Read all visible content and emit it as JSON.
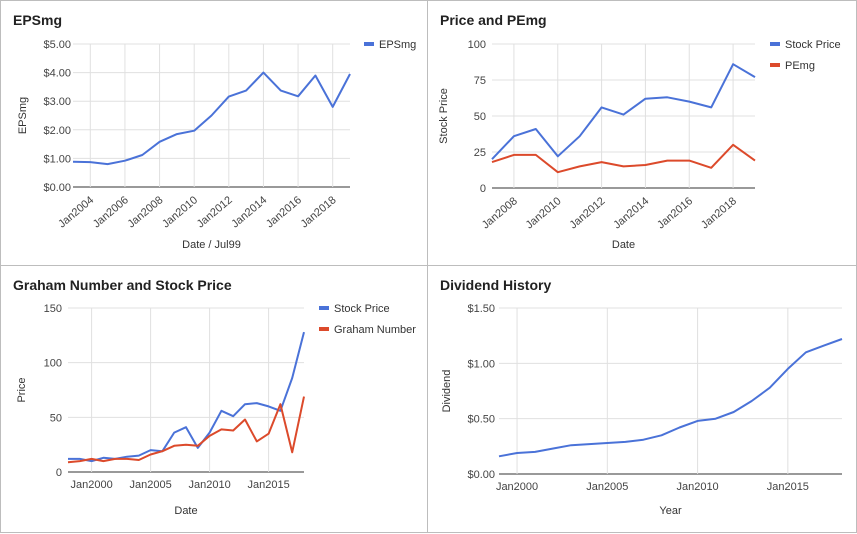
{
  "chart_data": [
    {
      "type": "line",
      "title": "EPSmg",
      "xlabel": "Date / Jul99",
      "ylabel": "EPSmg",
      "ylim": [
        0,
        5
      ],
      "yticks": [
        "$0.00",
        "$1.00",
        "$2.00",
        "$3.00",
        "$4.00",
        "$5.00"
      ],
      "xticks": [
        "Jan2004",
        "Jan2006",
        "Jan2008",
        "Jan2010",
        "Jan2012",
        "Jan2014",
        "Jan2016",
        "Jan2018"
      ],
      "x": [
        2003,
        2004,
        2005,
        2006,
        2007,
        2008,
        2009,
        2010,
        2011,
        2012,
        2013,
        2014,
        2015,
        2016,
        2017,
        2018,
        2019
      ],
      "series": [
        {
          "name": "EPSmg",
          "color": "#4a72d8",
          "values": [
            0.88,
            0.87,
            0.8,
            0.92,
            1.12,
            1.58,
            1.85,
            1.97,
            2.5,
            3.16,
            3.37,
            4.0,
            3.37,
            3.17,
            3.9,
            2.8,
            3.95
          ]
        }
      ]
    },
    {
      "type": "line",
      "title": "Price and PEmg",
      "xlabel": "Date",
      "ylabel": "Stock Price",
      "ylim": [
        0,
        100
      ],
      "yticks": [
        "0",
        "25",
        "50",
        "75",
        "100"
      ],
      "xticks": [
        "Jan2008",
        "Jan2010",
        "Jan2012",
        "Jan2014",
        "Jan2016",
        "Jan2018"
      ],
      "x": [
        2007,
        2008,
        2009,
        2010,
        2011,
        2012,
        2013,
        2014,
        2015,
        2016,
        2017,
        2018,
        2019
      ],
      "series": [
        {
          "name": "Stock Price",
          "color": "#4a72d8",
          "values": [
            20,
            36,
            41,
            22,
            36,
            56,
            51,
            62,
            63,
            60,
            56,
            86,
            77
          ]
        },
        {
          "name": "PEmg",
          "color": "#dc4a2b",
          "values": [
            18,
            23,
            23,
            11,
            15,
            18,
            15,
            16,
            19,
            19,
            14,
            30,
            19
          ]
        }
      ]
    },
    {
      "type": "line",
      "title": "Graham Number and Stock Price",
      "xlabel": "Date",
      "ylabel": "Price",
      "ylim": [
        0,
        150
      ],
      "yticks": [
        "0",
        "50",
        "100",
        "150"
      ],
      "xticks": [
        "Jan2000",
        "Jan2005",
        "Jan2010",
        "Jan2015"
      ],
      "x": [
        1998,
        1999,
        2000,
        2001,
        2002,
        2003,
        2004,
        2005,
        2006,
        2007,
        2008,
        2009,
        2010,
        2011,
        2012,
        2013,
        2014,
        2015,
        2016,
        2017,
        2018
      ],
      "series": [
        {
          "name": "Stock Price",
          "color": "#4a72d8",
          "values": [
            12,
            12,
            10,
            13,
            12,
            14,
            15,
            20,
            19,
            36,
            41,
            22,
            36,
            56,
            51,
            62,
            63,
            60,
            56,
            86,
            128
          ]
        },
        {
          "name": "Graham Number",
          "color": "#dc4a2b",
          "values": [
            9,
            10,
            12,
            10,
            12,
            12,
            11,
            16,
            19,
            24,
            25,
            24,
            33,
            39,
            38,
            48,
            28,
            35,
            62,
            18,
            69
          ]
        }
      ]
    },
    {
      "type": "line",
      "title": "Dividend History",
      "xlabel": "Year",
      "ylabel": "Dividend",
      "ylim": [
        0,
        1.5
      ],
      "yticks": [
        "$0.00",
        "$0.50",
        "$1.00",
        "$1.50"
      ],
      "xticks": [
        "Jan2000",
        "Jan2005",
        "Jan2010",
        "Jan2015"
      ],
      "x": [
        1999,
        2000,
        2001,
        2002,
        2003,
        2004,
        2005,
        2006,
        2007,
        2008,
        2009,
        2010,
        2011,
        2012,
        2013,
        2014,
        2015,
        2016,
        2017,
        2018
      ],
      "series": [
        {
          "name": "",
          "color": "#4a72d8",
          "values": [
            0.16,
            0.19,
            0.2,
            0.23,
            0.26,
            0.27,
            0.28,
            0.29,
            0.31,
            0.35,
            0.42,
            0.48,
            0.5,
            0.56,
            0.66,
            0.78,
            0.95,
            1.1,
            1.16,
            1.22
          ]
        }
      ]
    }
  ]
}
